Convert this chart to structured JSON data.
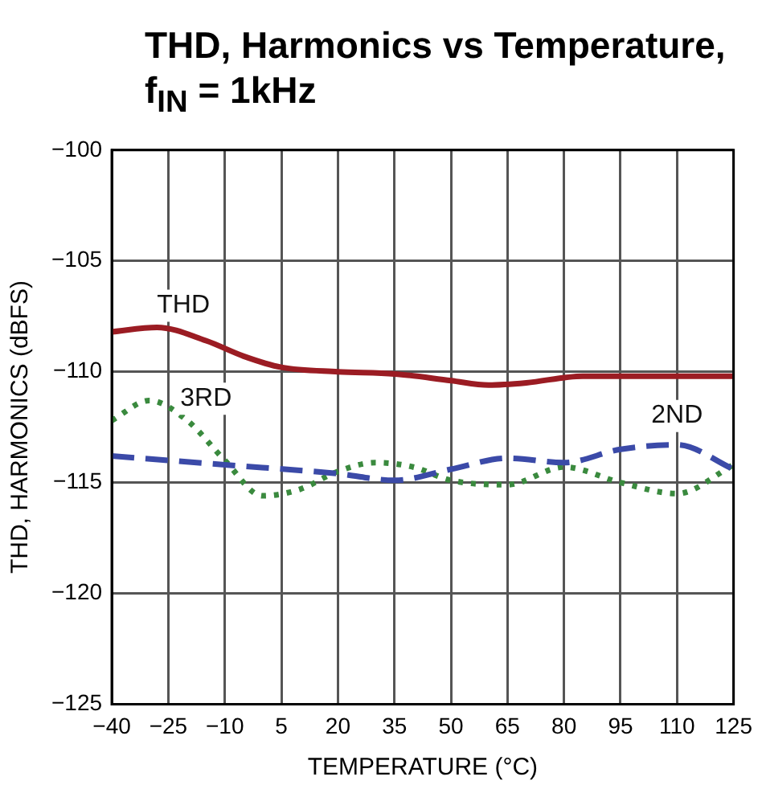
{
  "chart_data": {
    "type": "line",
    "title": "THD, Harmonics vs Temperature, f$_{IN}$ = 1kHz",
    "xlabel": "TEMPERATURE (°C)",
    "ylabel": "THD, HARMONICS (dBFS)",
    "xlim": [
      -40,
      125
    ],
    "xticks": [
      {
        "value": -40,
        "label": "−40"
      },
      {
        "value": -25,
        "label": "−25"
      },
      {
        "value": -10,
        "label": "−10"
      },
      5,
      20,
      35,
      50,
      65,
      80,
      95,
      110,
      125
    ],
    "ylim": [
      -125,
      -100
    ],
    "yticks": [
      {
        "value": -125,
        "label": "−125"
      },
      {
        "value": -120,
        "label": "−120"
      },
      {
        "value": -115,
        "label": "−115"
      },
      {
        "value": -110,
        "label": "−110"
      },
      {
        "value": -105,
        "label": "−105"
      },
      {
        "value": -100,
        "label": "−100"
      }
    ],
    "grid": true,
    "legend": false,
    "marker": "none",
    "series": [
      {
        "name": "THD",
        "color": "#9b1c23",
        "line_style": "solid",
        "x": [
          -40,
          -28,
          -15,
          -5,
          5,
          20,
          35,
          50,
          60,
          70,
          85,
          100,
          125
        ],
        "values": [
          -108.2,
          -108.0,
          -108.6,
          -109.3,
          -109.8,
          -110.0,
          -110.1,
          -110.4,
          -110.6,
          -110.5,
          -110.2,
          -110.2,
          -110.2
        ]
      },
      {
        "name": "2ND",
        "color": "#3b4aa8",
        "line_style": "dashed",
        "x": [
          -40,
          -10,
          20,
          35,
          50,
          65,
          80,
          95,
          110,
          125
        ],
        "values": [
          -113.8,
          -114.2,
          -114.6,
          -114.9,
          -114.4,
          -113.9,
          -114.1,
          -113.5,
          -113.3,
          -114.4
        ]
      },
      {
        "name": "3RD",
        "color": "#3a8a3e",
        "line_style": "dotted",
        "x": [
          -40,
          -30,
          -20,
          -10,
          0,
          10,
          20,
          30,
          40,
          50,
          65,
          80,
          95,
          110,
          125
        ],
        "values": [
          -112.2,
          -111.3,
          -112.2,
          -114.0,
          -115.6,
          -115.3,
          -114.5,
          -114.1,
          -114.3,
          -114.9,
          -115.1,
          -114.3,
          -115.0,
          -115.5,
          -114.2
        ]
      }
    ]
  }
}
